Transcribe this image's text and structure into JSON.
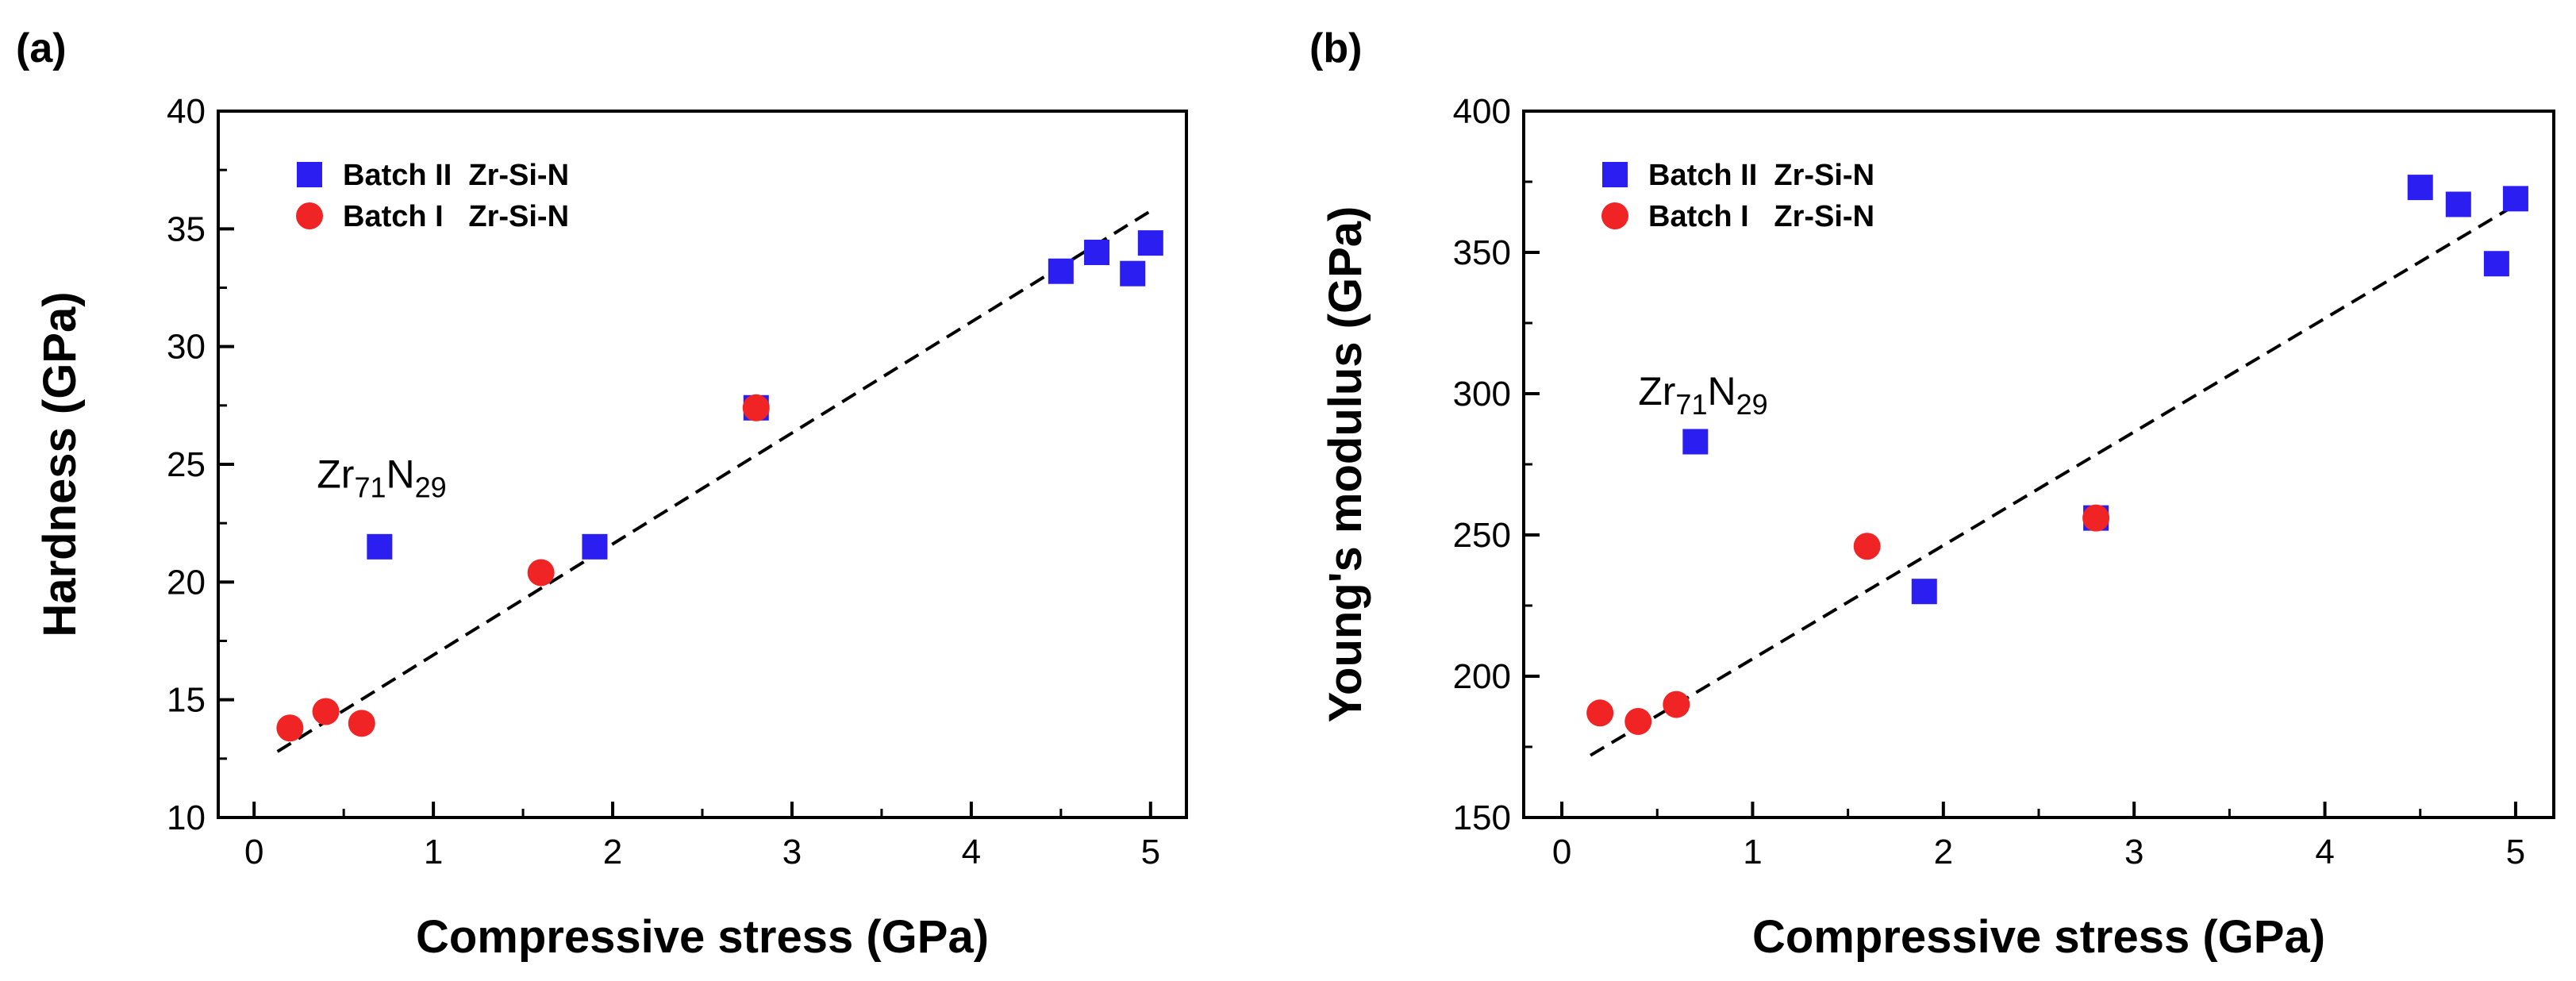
{
  "chart_data": [
    {
      "type": "scatter",
      "panel_label": "(a)",
      "xlabel": "Compressive stress (GPa)",
      "ylabel": "Hardness (GPa)",
      "xlim": [
        -0.2,
        5.2
      ],
      "ylim": [
        10,
        40
      ],
      "xticks": [
        "0",
        "1",
        "2",
        "3",
        "4",
        "5"
      ],
      "yticks": [
        "10",
        "15",
        "20",
        "25",
        "30",
        "35",
        "40"
      ],
      "grid": false,
      "legend_position": "top-left",
      "series": [
        {
          "name": "Batch II  Zr-Si-N",
          "marker": "square",
          "color": "#2b1ef0",
          "points": [
            [
              0.7,
              21.5
            ],
            [
              1.9,
              21.5
            ],
            [
              2.8,
              27.4
            ],
            [
              4.5,
              33.2
            ],
            [
              4.7,
              34.0
            ],
            [
              4.9,
              33.1
            ],
            [
              5.0,
              34.4
            ]
          ]
        },
        {
          "name": "Batch I   Zr-Si-N",
          "marker": "circle",
          "color": "#f02424",
          "points": [
            [
              0.2,
              13.8
            ],
            [
              0.4,
              14.5
            ],
            [
              0.6,
              14.0
            ],
            [
              1.6,
              20.4
            ],
            [
              2.8,
              27.4
            ]
          ]
        }
      ],
      "fit_line": {
        "from": [
          0.13,
          12.8
        ],
        "to": [
          5.03,
          35.9
        ]
      },
      "annotation": {
        "main": "Zr",
        "sub1": "71",
        "mid": "N",
        "sub2": "29",
        "at": [
          0.35,
          24.0
        ]
      }
    },
    {
      "type": "scatter",
      "panel_label": "(b)",
      "xlabel": "Compressive stress (GPa)",
      "ylabel": "Young's modulus (GPa)",
      "xlim": [
        -0.2,
        5.2
      ],
      "ylim": [
        150,
        400
      ],
      "xticks": [
        "0",
        "1",
        "2",
        "3",
        "4",
        "5"
      ],
      "yticks": [
        "150",
        "200",
        "250",
        "300",
        "350",
        "400"
      ],
      "grid": false,
      "legend_position": "top-left",
      "series": [
        {
          "name": "Batch II  Zr-Si-N",
          "marker": "square",
          "color": "#2b1ef0",
          "points": [
            [
              0.7,
              283
            ],
            [
              1.9,
              230
            ],
            [
              2.8,
              256
            ],
            [
              4.5,
              373
            ],
            [
              4.7,
              367
            ],
            [
              4.9,
              346
            ],
            [
              5.0,
              369
            ]
          ]
        },
        {
          "name": "Batch I   Zr-Si-N",
          "marker": "circle",
          "color": "#f02424",
          "points": [
            [
              0.2,
              187
            ],
            [
              0.4,
              184
            ],
            [
              0.6,
              190
            ],
            [
              1.6,
              246
            ],
            [
              2.8,
              256
            ]
          ]
        }
      ],
      "fit_line": {
        "from": [
          0.15,
          172
        ],
        "to": [
          5.03,
          368
        ]
      },
      "annotation": {
        "main": "Zr",
        "sub1": "71",
        "mid": "N",
        "sub2": "29",
        "at": [
          0.4,
          296
        ]
      }
    }
  ]
}
